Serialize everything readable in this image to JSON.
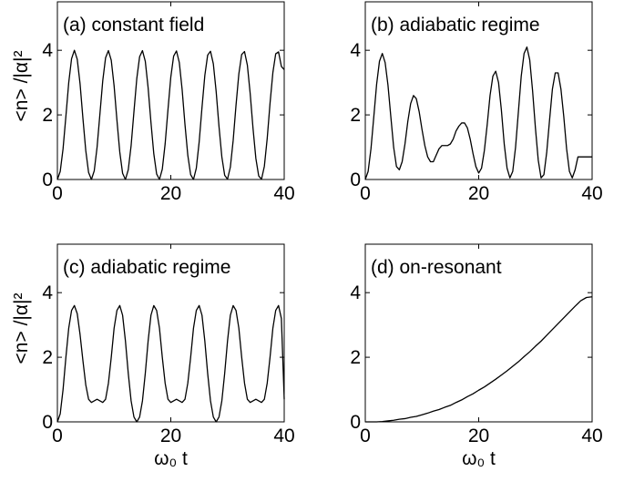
{
  "chart_data": [
    {
      "id": "a",
      "type": "line",
      "label": "(a) constant field",
      "ylabel": "<n> /|α|²",
      "xlabel": "",
      "xlim": [
        0,
        40
      ],
      "ylim": [
        0,
        5.5
      ],
      "xticks": [
        0,
        20,
        40
      ],
      "yticks": [
        0,
        2,
        4
      ],
      "series": [
        {
          "x": [
            0,
            0.5,
            1,
            1.5,
            2,
            2.5,
            3,
            3.5,
            4,
            4.5,
            5,
            5.5,
            6,
            6.5,
            7,
            7.5,
            8,
            8.5,
            9,
            9.5,
            10,
            10.5,
            11,
            11.5,
            12,
            12.5,
            13,
            13.5,
            14,
            14.5,
            15,
            15.5,
            16,
            16.5,
            17,
            17.5,
            18,
            18.5,
            19,
            19.5,
            20,
            20.5,
            21,
            21.5,
            22,
            22.5,
            23,
            23.5,
            24,
            24.5,
            25,
            25.5,
            26,
            26.5,
            27,
            27.5,
            28,
            28.5,
            29,
            29.5,
            30,
            30.5,
            31,
            31.5,
            32,
            32.5,
            33,
            33.5,
            34,
            34.5,
            35,
            35.5,
            36,
            36.5,
            37,
            37.5,
            38,
            38.5,
            39,
            39.5,
            40
          ],
          "y": [
            0,
            0.25,
            0.95,
            1.96,
            3.0,
            3.74,
            4.0,
            3.72,
            2.96,
            1.9,
            0.9,
            0.22,
            0.0,
            0.27,
            1.0,
            2.03,
            3.06,
            3.77,
            3.99,
            3.69,
            2.9,
            1.84,
            0.85,
            0.19,
            0.0,
            0.3,
            1.05,
            2.1,
            3.12,
            3.8,
            3.99,
            3.66,
            2.84,
            1.77,
            0.8,
            0.17,
            0.0,
            0.32,
            1.1,
            2.16,
            3.17,
            3.82,
            3.98,
            3.62,
            2.78,
            1.7,
            0.75,
            0.15,
            0.0,
            0.35,
            1.16,
            2.23,
            3.22,
            3.85,
            3.97,
            3.58,
            2.72,
            1.64,
            0.7,
            0.13,
            0.01,
            0.38,
            1.21,
            2.3,
            3.27,
            3.87,
            3.96,
            3.54,
            2.66,
            1.58,
            0.65,
            0.11,
            0.01,
            0.41,
            1.27,
            2.36,
            3.31,
            3.89,
            3.95,
            3.5,
            3.4
          ]
        }
      ]
    },
    {
      "id": "b",
      "type": "line",
      "label": "(b) adiabatic regime",
      "ylabel": "",
      "xlabel": "",
      "xlim": [
        0,
        40
      ],
      "ylim": [
        0,
        5.5
      ],
      "xticks": [
        0,
        20,
        40
      ],
      "yticks": [
        0,
        2,
        4
      ],
      "series": [
        {
          "x": [
            0,
            0.5,
            1,
            1.5,
            2,
            2.5,
            3,
            3.5,
            4,
            4.5,
            5,
            5.5,
            6,
            6.5,
            7,
            7.5,
            8,
            8.5,
            9,
            9.5,
            10,
            10.5,
            11,
            11.5,
            12,
            12.5,
            13,
            13.5,
            14,
            14.5,
            15,
            15.5,
            16,
            16.5,
            17,
            17.5,
            18,
            18.5,
            19,
            19.5,
            20,
            20.5,
            21,
            21.5,
            22,
            22.5,
            23,
            23.5,
            24,
            24.5,
            25,
            25.5,
            26,
            26.5,
            27,
            27.5,
            28,
            28.5,
            29,
            29.5,
            30,
            30.5,
            31,
            31.5,
            32,
            32.5,
            33,
            33.5,
            34,
            34.5,
            35,
            35.5,
            36,
            36.5,
            37,
            37.5,
            38,
            38.5,
            39,
            39.5,
            40
          ],
          "y": [
            0,
            0.25,
            0.95,
            1.94,
            2.95,
            3.66,
            3.9,
            3.62,
            2.92,
            1.95,
            1.0,
            0.4,
            0.3,
            0.55,
            1.1,
            1.8,
            2.35,
            2.6,
            2.5,
            2.1,
            1.55,
            1.05,
            0.7,
            0.55,
            0.55,
            0.75,
            0.95,
            1.05,
            1.05,
            1.05,
            1.1,
            1.25,
            1.5,
            1.65,
            1.75,
            1.75,
            1.6,
            1.25,
            0.8,
            0.4,
            0.2,
            0.35,
            0.9,
            1.7,
            2.6,
            3.2,
            3.35,
            3.0,
            2.15,
            1.1,
            0.35,
            0.05,
            0.25,
            1.0,
            2.1,
            3.2,
            3.9,
            4.1,
            3.7,
            2.75,
            1.6,
            0.6,
            0.05,
            0.15,
            0.85,
            1.85,
            2.8,
            3.3,
            3.3,
            2.8,
            1.95,
            0.95,
            0.25,
            0.05,
            0.3,
            0.7,
            0.7,
            0.7,
            0.7,
            0.7,
            0.7
          ]
        }
      ]
    },
    {
      "id": "c",
      "type": "line",
      "label": "(c) adiabatic regime",
      "ylabel": "<n> /|α|²",
      "xlabel": "ω₀ t",
      "xlim": [
        0,
        40
      ],
      "ylim": [
        0,
        5.5
      ],
      "xticks": [
        0,
        20,
        40
      ],
      "yticks": [
        0,
        2,
        4
      ],
      "series": [
        {
          "x": [
            0,
            0.5,
            1,
            1.5,
            2,
            2.5,
            3,
            3.5,
            4,
            4.5,
            5,
            5.5,
            6,
            6.5,
            7,
            7.5,
            8,
            8.5,
            9,
            9.5,
            10,
            10.5,
            11,
            11.5,
            12,
            12.5,
            13,
            13.5,
            14,
            14.5,
            15,
            15.5,
            16,
            16.5,
            17,
            17.5,
            18,
            18.5,
            19,
            19.5,
            20,
            20.5,
            21,
            21.5,
            22,
            22.5,
            23,
            23.5,
            24,
            24.5,
            25,
            25.5,
            26,
            26.5,
            27,
            27.5,
            28,
            28.5,
            29,
            29.5,
            30,
            30.5,
            31,
            31.5,
            32,
            32.5,
            33,
            33.5,
            34,
            34.5,
            35,
            35.5,
            36,
            36.5,
            37,
            37.5,
            38,
            38.5,
            39,
            39.5,
            40
          ],
          "y": [
            0,
            0.25,
            1.0,
            2.0,
            2.9,
            3.45,
            3.6,
            3.35,
            2.7,
            1.9,
            1.15,
            0.7,
            0.6,
            0.65,
            0.7,
            0.65,
            0.6,
            0.7,
            1.2,
            2.0,
            2.9,
            3.45,
            3.6,
            3.3,
            2.5,
            1.5,
            0.65,
            0.15,
            0.0,
            0.15,
            0.65,
            1.5,
            2.5,
            3.3,
            3.6,
            3.45,
            2.9,
            2.0,
            1.2,
            0.7,
            0.6,
            0.65,
            0.7,
            0.65,
            0.6,
            0.7,
            1.2,
            2.0,
            2.9,
            3.45,
            3.6,
            3.3,
            2.5,
            1.5,
            0.65,
            0.15,
            0.0,
            0.15,
            0.65,
            1.5,
            2.5,
            3.3,
            3.6,
            3.45,
            2.9,
            2.0,
            1.2,
            0.7,
            0.6,
            0.65,
            0.7,
            0.65,
            0.6,
            0.7,
            1.2,
            2.0,
            2.9,
            3.45,
            3.6,
            3.2,
            0.7
          ]
        }
      ]
    },
    {
      "id": "d",
      "type": "line",
      "label": "(d) on-resonant",
      "ylabel": "",
      "xlabel": "ω₀ t",
      "xlim": [
        0,
        40
      ],
      "ylim": [
        0,
        5.5
      ],
      "xticks": [
        0,
        20,
        40
      ],
      "yticks": [
        0,
        2,
        4
      ],
      "series": [
        {
          "x": [
            0,
            1,
            2,
            3,
            4,
            5,
            6,
            7,
            8,
            9,
            10,
            11,
            12,
            13,
            14,
            15,
            16,
            17,
            18,
            19,
            20,
            21,
            22,
            23,
            24,
            25,
            26,
            27,
            28,
            29,
            30,
            31,
            32,
            33,
            34,
            35,
            36,
            37,
            38,
            39,
            40
          ],
          "y": [
            0,
            0.0,
            0.0,
            0.01,
            0.03,
            0.05,
            0.08,
            0.1,
            0.14,
            0.17,
            0.22,
            0.27,
            0.33,
            0.38,
            0.45,
            0.51,
            0.6,
            0.68,
            0.78,
            0.87,
            0.98,
            1.08,
            1.2,
            1.32,
            1.45,
            1.58,
            1.72,
            1.86,
            2.02,
            2.17,
            2.34,
            2.5,
            2.68,
            2.86,
            3.04,
            3.22,
            3.4,
            3.58,
            3.75,
            3.85,
            3.87
          ]
        }
      ]
    }
  ]
}
